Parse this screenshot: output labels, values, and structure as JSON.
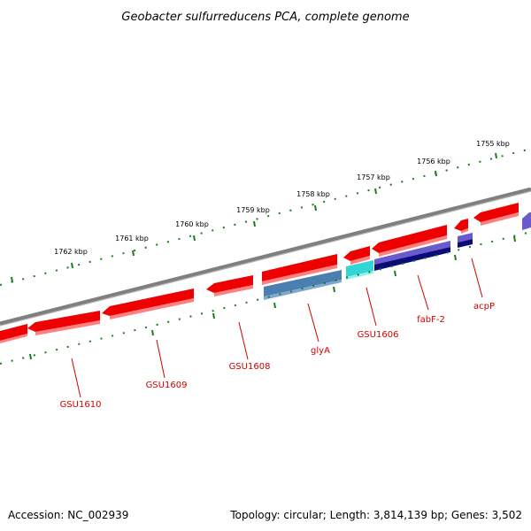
{
  "title": "Geobacter sulfurreducens PCA, complete genome",
  "footer": {
    "accession": "Accession: NC_002939",
    "topology": "Topology: circular; Length: 3,814,139 bp; Genes: 3,502"
  },
  "colors": {
    "backbone": "#7f7f7f",
    "tick": "#1a7f1a",
    "gene_forward": "#ee0000",
    "gene_light": "#ff8080",
    "gly_blue": "#4a7fb0",
    "cyan": "#33d6d6",
    "purple": "#6a5acd",
    "navy": "#0b0b7a",
    "label": "#d00000"
  },
  "kbp_labels": [
    "1762 kbp",
    "1761 kbp",
    "1760 kbp",
    "1759 kbp",
    "1758 kbp",
    "1757 kbp",
    "1756 kbp",
    "1755 kbp"
  ],
  "gene_labels": [
    "GSU1610",
    "GSU1609",
    "GSU1608",
    "glyA",
    "GSU1606",
    "fabF-2",
    "acpP"
  ]
}
